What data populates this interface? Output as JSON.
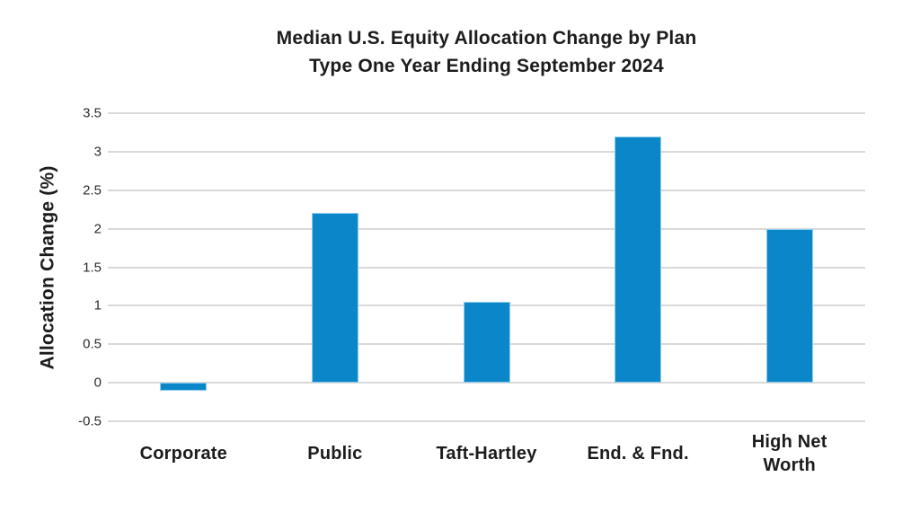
{
  "chart_data": {
    "type": "bar",
    "title": "Median U.S. Equity Allocation Change by Plan\nType One Year Ending September 2024",
    "ylabel": "Allocation Change (%)",
    "xlabel": "",
    "categories": [
      "Corporate",
      "Public",
      "Taft-Hartley",
      "End. & Fnd.",
      "High Net\nWorth"
    ],
    "values": [
      -0.1,
      2.2,
      1.05,
      3.2,
      2.0
    ],
    "ylim": [
      -0.5,
      3.5
    ],
    "yticks": [
      3.5,
      3,
      2.5,
      2,
      1.5,
      1,
      0.5,
      0,
      -0.5
    ],
    "grid": true,
    "legend": false,
    "colors": {
      "bar_fill": "#0b87c9",
      "bar_edge": "#8fccee",
      "gridline": "#d9d9d9",
      "title_text": "#1c1c1e",
      "tick_text": "#2b2b2b",
      "background": "#ffffff"
    }
  }
}
